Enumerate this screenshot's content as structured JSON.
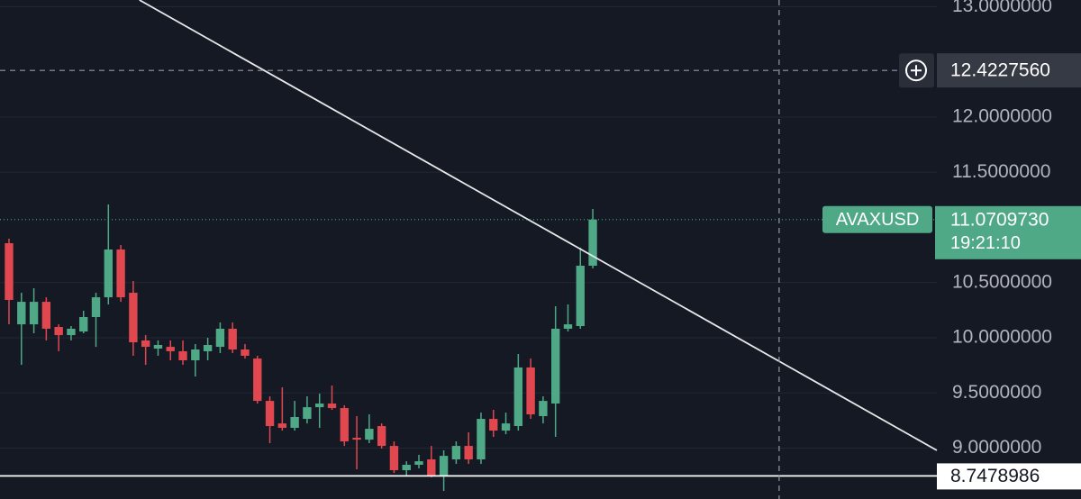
{
  "chart_data": {
    "type": "candlestick",
    "up_color": "#4fa987",
    "down_color": "#e0474f",
    "xlim": [
      -0.725,
      74.7
    ],
    "ylim": [
      8.539,
      13.061
    ],
    "yticks": [
      {
        "value": 13,
        "label": "13.0000000"
      },
      {
        "value": 12,
        "label": "12.0000000"
      },
      {
        "value": 11.5,
        "label": "11.5000000"
      },
      {
        "value": 10.5,
        "label": "10.5000000"
      },
      {
        "value": 10,
        "label": "10.0000000"
      },
      {
        "value": 9.5,
        "label": "9.5000000"
      },
      {
        "value": 9,
        "label": "9.0000000"
      }
    ],
    "grid": true,
    "open": [
      10.857,
      10.122,
      10.122,
      10.326,
      10.098,
      10.024,
      10.057,
      10.188,
      10.367,
      10.8,
      10.408,
      9.976,
      9.902,
      9.918,
      9.878,
      9.796,
      9.878,
      9.918,
      10.082,
      9.894,
      9.812,
      9.428,
      9.224,
      9.184,
      9.265,
      9.371,
      9.404,
      9.363,
      9.094,
      9.077,
      9.2,
      9.02,
      8.8,
      8.849,
      8.898,
      8.751,
      8.898,
      9.02,
      8.898,
      9.265,
      9.159,
      9.2,
      9.731,
      9.29,
      9.404,
      10.082,
      10.106,
      10.653
    ],
    "high": [
      10.898,
      10.408,
      10.449,
      10.367,
      10.122,
      10.106,
      10.245,
      10.408,
      11.208,
      10.841,
      10.514,
      10.024,
      9.976,
      9.976,
      9.976,
      9.943,
      10.0,
      10.139,
      10.139,
      9.943,
      9.837,
      9.469,
      9.551,
      9.428,
      9.469,
      9.494,
      9.567,
      9.388,
      9.29,
      9.306,
      9.224,
      9.061,
      8.881,
      8.939,
      9.02,
      8.98,
      9.061,
      9.143,
      9.322,
      9.347,
      9.322,
      9.853,
      9.812,
      9.469,
      10.286,
      10.302,
      10.816,
      11.167
    ],
    "low": [
      10.122,
      9.755,
      10.041,
      9.976,
      9.878,
      9.976,
      10.041,
      9.918,
      10.302,
      10.326,
      9.837,
      9.755,
      9.837,
      9.796,
      9.755,
      9.649,
      9.796,
      9.861,
      9.861,
      9.812,
      9.404,
      9.045,
      9.159,
      9.159,
      9.224,
      9.184,
      9.347,
      9.02,
      8.808,
      9.045,
      8.996,
      8.775,
      8.751,
      8.816,
      8.735,
      8.612,
      8.857,
      8.857,
      8.857,
      9.102,
      9.126,
      9.159,
      9.265,
      9.224,
      9.102,
      10.057,
      10.082,
      10.629
    ],
    "close": [
      10.343,
      10.326,
      10.326,
      10.082,
      10.024,
      10.082,
      10.188,
      10.367,
      10.8,
      10.367,
      9.959,
      9.918,
      9.935,
      9.878,
      9.796,
      9.894,
      9.935,
      10.082,
      9.894,
      9.837,
      9.428,
      9.2,
      9.184,
      9.282,
      9.371,
      9.404,
      9.363,
      9.061,
      9.077,
      9.175,
      9.02,
      8.8,
      8.849,
      8.881,
      8.751,
      8.93,
      9.02,
      8.898,
      9.265,
      9.159,
      9.224,
      9.731,
      9.306,
      9.428,
      10.082,
      10.122,
      10.653,
      11.071
    ],
    "trendline": {
      "x": [
        10.5,
        74.7
      ],
      "y": [
        13.061,
        8.98
      ]
    },
    "crosshair": {
      "x": 62.0,
      "value": 12.422756,
      "label": "12.4227560"
    },
    "last_price": {
      "symbol": "AVAXUSD",
      "value": 11.070973,
      "label": "11.0709730",
      "countdown": "19:21:10",
      "color": "#4fa987"
    },
    "support_line": {
      "value": 8.7478986,
      "label": "8.7478986"
    }
  }
}
